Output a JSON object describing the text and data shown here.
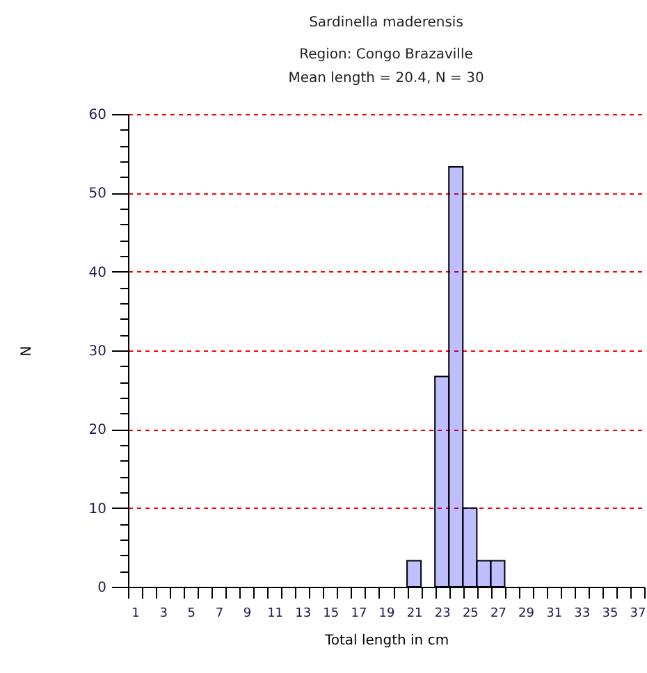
{
  "chart_data": {
    "type": "histogram",
    "title": "Sardinella maderensis",
    "subtitle": "Region: Congo Brazaville\nMean length = 20.4, N = 30",
    "xlabel": "Total length in cm",
    "ylabel": "N",
    "bins": [
      0.5,
      1.5,
      2.5,
      3.5,
      4.5,
      5.5,
      6.5,
      7.5,
      8.5,
      9.5,
      10.5,
      11.5,
      12.5,
      13.5,
      14.5,
      15.5,
      16.5,
      17.5,
      18.5,
      19.5,
      20.5,
      21.5,
      22.5,
      23.5,
      24.5,
      25.5,
      26.5,
      27.5,
      28.5,
      29.5,
      30.5,
      31.5,
      32.5,
      33.5,
      34.5,
      35.5,
      36.5,
      37.5
    ],
    "values": [
      0,
      0,
      0,
      0,
      0,
      0,
      0,
      0,
      0,
      0,
      0,
      0,
      0,
      0,
      0,
      0,
      0,
      0,
      0,
      0,
      3.3,
      0,
      26.7,
      53.3,
      10,
      3.3,
      3.3,
      0,
      0,
      0,
      0,
      0,
      0,
      0,
      0,
      0,
      0
    ],
    "color": "#0000ff",
    "xlim": [
      0.5,
      37.5
    ],
    "xticks": [
      1,
      3,
      5,
      7,
      9,
      11,
      13,
      15,
      17,
      19,
      21,
      23,
      25,
      27,
      29,
      31,
      33,
      35,
      37,
      {
        "value": 0.5,
        "label": null
      },
      {
        "value": 1.5,
        "label": null
      },
      {
        "value": 2.5,
        "label": null
      },
      {
        "value": 3.5,
        "label": null
      },
      {
        "value": 4.5,
        "label": null
      },
      {
        "value": 5.5,
        "label": null
      },
      {
        "value": 6.5,
        "label": null
      },
      {
        "value": 7.5,
        "label": null
      },
      {
        "value": 8.5,
        "label": null
      },
      {
        "value": 9.5,
        "label": null
      },
      {
        "value": 10.5,
        "label": null
      },
      {
        "value": 11.5,
        "label": null
      },
      {
        "value": 12.5,
        "label": null
      },
      {
        "value": 13.5,
        "label": null
      },
      {
        "value": 14.5,
        "label": null
      },
      {
        "value": 15.5,
        "label": null
      },
      {
        "value": 16.5,
        "label": null
      },
      {
        "value": 17.5,
        "label": null
      },
      {
        "value": 18.5,
        "label": null
      },
      {
        "value": 19.5,
        "label": null
      },
      {
        "value": 20.5,
        "label": null
      },
      {
        "value": 21.5,
        "label": null
      },
      {
        "value": 22.5,
        "label": null
      },
      {
        "value": 23.5,
        "label": null
      },
      {
        "value": 24.5,
        "label": null
      },
      {
        "value": 25.5,
        "label": null
      },
      {
        "value": 26.5,
        "label": null
      },
      {
        "value": 27.5,
        "label": null
      },
      {
        "value": 28.5,
        "label": null
      },
      {
        "value": 29.5,
        "label": null
      },
      {
        "value": 30.5,
        "label": null
      },
      {
        "value": 31.5,
        "label": null
      },
      {
        "value": 32.5,
        "label": null
      },
      {
        "value": 33.5,
        "label": null
      },
      {
        "value": 34.5,
        "label": null
      },
      {
        "value": 35.5,
        "label": null
      },
      {
        "value": 36.5,
        "label": null
      },
      {
        "value": 37.5,
        "label": null
      }
    ],
    "ylim": [
      0,
      60
    ],
    "yticks": [
      0,
      10,
      20,
      30,
      40,
      50,
      60,
      {
        "value": 2,
        "label": null
      },
      {
        "value": 4,
        "label": null
      },
      {
        "value": 6,
        "label": null
      },
      {
        "value": 8,
        "label": null
      },
      {
        "value": 12,
        "label": null
      },
      {
        "value": 14,
        "label": null
      },
      {
        "value": 16,
        "label": null
      },
      {
        "value": 18,
        "label": null
      },
      {
        "value": 22,
        "label": null
      },
      {
        "value": 24,
        "label": null
      },
      {
        "value": 26,
        "label": null
      },
      {
        "value": 28,
        "label": null
      },
      {
        "value": 32,
        "label": null
      },
      {
        "value": 34,
        "label": null
      },
      {
        "value": 36,
        "label": null
      },
      {
        "value": 38,
        "label": null
      },
      {
        "value": 42,
        "label": null
      },
      {
        "value": 44,
        "label": null
      },
      {
        "value": 46,
        "label": null
      },
      {
        "value": 48,
        "label": null
      },
      {
        "value": 52,
        "label": null
      },
      {
        "value": 54,
        "label": null
      },
      {
        "value": 56,
        "label": null
      },
      {
        "value": 58,
        "label": null
      }
    ],
    "grid": "y"
  }
}
